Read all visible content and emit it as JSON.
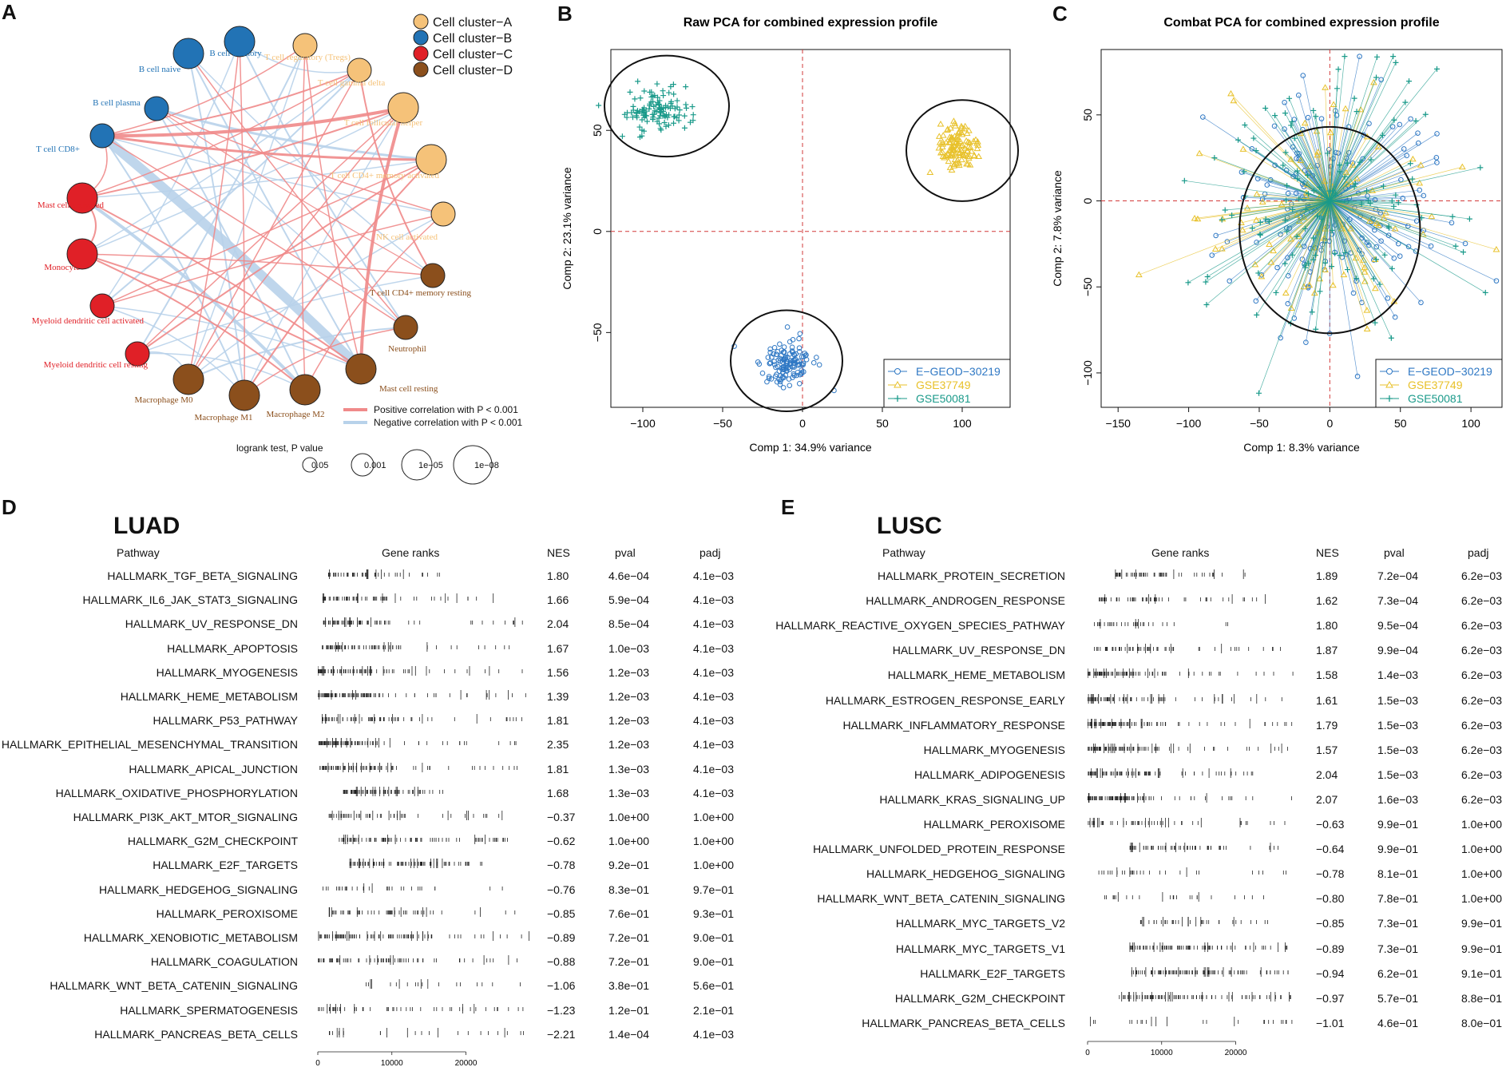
{
  "panels": {
    "a": "A",
    "b": "B",
    "c": "C",
    "d": "D",
    "e": "E"
  },
  "network": {
    "legend": [
      {
        "label": "Cell cluster−A",
        "color": "#f5c279"
      },
      {
        "label": "Cell cluster−B",
        "color": "#2273b5"
      },
      {
        "label": "Cell cluster−C",
        "color": "#e02027"
      },
      {
        "label": "Cell cluster−D",
        "color": "#8b4f1c"
      }
    ],
    "nodes": [
      {
        "label": "B cell naive",
        "cluster": 1,
        "size": 1
      },
      {
        "label": "B cell memory",
        "cluster": 1,
        "size": 1
      },
      {
        "label": "T cell regulatory (Tregs)",
        "cluster": 0,
        "size": 0
      },
      {
        "label": "T cell gamma delta",
        "cluster": 0,
        "size": 0
      },
      {
        "label": "T cell follicular helper",
        "cluster": 0,
        "size": 1
      },
      {
        "label": "T cell CD4+ memory activated",
        "cluster": 0,
        "size": 1
      },
      {
        "label": "NK cell activated",
        "cluster": 0,
        "size": 0
      },
      {
        "label": "T cell CD4+ memory resting",
        "cluster": 3,
        "size": 0
      },
      {
        "label": "Neutrophil",
        "cluster": 3,
        "size": 0
      },
      {
        "label": "Mast cell resting",
        "cluster": 3,
        "size": 1
      },
      {
        "label": "Macrophage M2",
        "cluster": 3,
        "size": 1
      },
      {
        "label": "Macrophage M1",
        "cluster": 3,
        "size": 1
      },
      {
        "label": "Macrophage M0",
        "cluster": 3,
        "size": 1
      },
      {
        "label": "Myeloid dendritic cell resting",
        "cluster": 2,
        "size": 0
      },
      {
        "label": "Myeloid dendritic cell activated",
        "cluster": 2,
        "size": 0
      },
      {
        "label": "Monocyte",
        "cluster": 2,
        "size": 1
      },
      {
        "label": "Mast cell activated",
        "cluster": 2,
        "size": 1
      },
      {
        "label": "T cell CD8+",
        "cluster": 1,
        "size": 0
      },
      {
        "label": "B cell plasma",
        "cluster": 1,
        "size": 0
      }
    ],
    "edge_legend": [
      {
        "label": "Positive correlation with P < 0.001",
        "color": "#f08a8a"
      },
      {
        "label": "Negative correlation with P < 0.001",
        "color": "#b8d2ea"
      }
    ],
    "size_legend": {
      "title": "logrank test, P value",
      "labels": [
        "0.05",
        "0.001",
        "1e−05",
        "1e−08"
      ]
    }
  },
  "chart_data": [
    {
      "type": "scatter",
      "title": "Raw PCA for combined expression profile",
      "xlabel": "Comp 1: 34.9% variance",
      "ylabel": "Comp 2: 23.1% variance",
      "xlim": [
        -120,
        130
      ],
      "ylim": [
        -87,
        90
      ],
      "xticks": [
        -100,
        -50,
        0,
        50,
        100
      ],
      "yticks": [
        -50,
        0,
        50
      ],
      "series": [
        {
          "name": "E−GEOD−30219",
          "color": "#2f78c4",
          "marker": "circle",
          "center": [
            -10,
            -65
          ],
          "spread": [
            10,
            7
          ],
          "n": 130
        },
        {
          "name": "GSE37749",
          "color": "#e8c12a",
          "marker": "triangle",
          "center": [
            98,
            42
          ],
          "spread": [
            9,
            7
          ],
          "n": 110
        },
        {
          "name": "GSE50081",
          "color": "#1a9a8a",
          "marker": "plus",
          "center": [
            -90,
            60
          ],
          "spread": [
            13,
            7
          ],
          "n": 120
        }
      ],
      "ellipses": [
        {
          "cx": -10,
          "cy": -64,
          "rx": 35,
          "ry": 25
        },
        {
          "cx": 100,
          "cy": 40,
          "rx": 35,
          "ry": 25
        },
        {
          "cx": -85,
          "cy": 62,
          "rx": 39,
          "ry": 25
        }
      ]
    },
    {
      "type": "scatter",
      "title": "Combat PCA for combined expression profile",
      "xlabel": "Comp 1: 8.3% variance",
      "ylabel": "Comp 2: 7.8% variance",
      "xlim": [
        -162,
        122
      ],
      "ylim": [
        -120,
        88
      ],
      "xticks": [
        -150,
        -100,
        -50,
        0,
        50,
        100
      ],
      "yticks": [
        -100,
        -50,
        0,
        50
      ],
      "series": [
        {
          "name": "E−GEOD−30219",
          "color": "#2f78c4",
          "marker": "circle",
          "spread": [
            40,
            35
          ],
          "n": 170
        },
        {
          "name": "GSE37749",
          "color": "#e8c12a",
          "marker": "triangle",
          "spread": [
            38,
            36
          ],
          "n": 100
        },
        {
          "name": "GSE50081",
          "color": "#1a9a8a",
          "marker": "plus",
          "spread": [
            48,
            40
          ],
          "n": 130
        }
      ],
      "ellipses": [
        {
          "cx": 0,
          "cy": -17,
          "rx": 64,
          "ry": 60
        }
      ]
    }
  ],
  "gsea": [
    {
      "title": "LUAD",
      "headers": {
        "pathway": "Pathway",
        "ranks": "Gene ranks",
        "nes": "NES",
        "pval": "pval",
        "padj": "padj"
      },
      "axis_ticks": [
        "0",
        "10000",
        "20000"
      ],
      "rows": [
        {
          "pathway": "HALLMARK_TGF_BETA_SIGNALING",
          "nes": "1.80",
          "pval": "4.6e−04",
          "padj": "4.1e−03",
          "s": 0.05,
          "e": 0.58,
          "d": 0.45,
          "n": 50
        },
        {
          "pathway": "HALLMARK_IL6_JAK_STAT3_SIGNALING",
          "nes": "1.66",
          "pval": "5.9e−04",
          "padj": "4.1e−03",
          "s": 0.02,
          "e": 0.86,
          "d": 0.4,
          "n": 60
        },
        {
          "pathway": "HALLMARK_UV_RESPONSE_DN",
          "nes": "2.04",
          "pval": "8.5e−04",
          "padj": "4.1e−03",
          "s": 0.02,
          "e": 0.98,
          "d": 0.35,
          "n": 70
        },
        {
          "pathway": "HALLMARK_APOPTOSIS",
          "nes": "1.67",
          "pval": "1.0e−03",
          "padj": "4.1e−03",
          "s": 0.02,
          "e": 0.98,
          "d": 0.4,
          "n": 70
        },
        {
          "pathway": "HALLMARK_MYOGENESIS",
          "nes": "1.56",
          "pval": "1.2e−03",
          "padj": "4.1e−03",
          "s": 0.0,
          "e": 1.0,
          "d": 0.35,
          "n": 90
        },
        {
          "pathway": "HALLMARK_HEME_METABOLISM",
          "nes": "1.39",
          "pval": "1.2e−03",
          "padj": "4.1e−03",
          "s": 0.0,
          "e": 1.0,
          "d": 0.35,
          "n": 90
        },
        {
          "pathway": "HALLMARK_P53_PATHWAY",
          "nes": "1.81",
          "pval": "1.2e−03",
          "padj": "4.1e−03",
          "s": 0.02,
          "e": 0.98,
          "d": 0.4,
          "n": 75
        },
        {
          "pathway": "HALLMARK_EPITHELIAL_MESENCHYMAL_TRANSITION",
          "nes": "2.35",
          "pval": "1.2e−03",
          "padj": "4.1e−03",
          "s": 0.0,
          "e": 0.98,
          "d": 0.3,
          "n": 90
        },
        {
          "pathway": "HALLMARK_APICAL_JUNCTION",
          "nes": "1.81",
          "pval": "1.3e−03",
          "padj": "4.1e−03",
          "s": 0.01,
          "e": 0.98,
          "d": 0.35,
          "n": 80
        },
        {
          "pathway": "HALLMARK_OXIDATIVE_PHOSPHORYLATION",
          "nes": "1.68",
          "pval": "1.3e−03",
          "padj": "4.1e−03",
          "s": 0.12,
          "e": 0.65,
          "d": 0.5,
          "n": 80
        },
        {
          "pathway": "HALLMARK_PI3K_AKT_MTOR_SIGNALING",
          "nes": "−0.37",
          "pval": "1.0e+00",
          "padj": "1.0e+00",
          "s": 0.05,
          "e": 0.9,
          "d": 0.5,
          "n": 60
        },
        {
          "pathway": "HALLMARK_G2M_CHECKPOINT",
          "nes": "−0.62",
          "pval": "1.0e+00",
          "padj": "1.0e+00",
          "s": 0.1,
          "e": 0.9,
          "d": 0.65,
          "n": 90
        },
        {
          "pathway": "HALLMARK_E2F_TARGETS",
          "nes": "−0.78",
          "pval": "9.2e−01",
          "padj": "1.0e+00",
          "s": 0.15,
          "e": 0.8,
          "d": 0.6,
          "n": 90
        },
        {
          "pathway": "HALLMARK_HEDGEHOG_SIGNALING",
          "nes": "−0.76",
          "pval": "8.3e−01",
          "padj": "9.7e−01",
          "s": 0.02,
          "e": 0.98,
          "d": 0.5,
          "n": 30
        },
        {
          "pathway": "HALLMARK_PEROXISOME",
          "nes": "−0.85",
          "pval": "7.6e−01",
          "padj": "9.3e−01",
          "s": 0.05,
          "e": 0.98,
          "d": 0.5,
          "n": 55
        },
        {
          "pathway": "HALLMARK_XENOBIOTIC_METABOLISM",
          "nes": "−0.89",
          "pval": "7.2e−01",
          "padj": "9.0e−01",
          "s": 0.0,
          "e": 1.0,
          "d": 0.5,
          "n": 90
        },
        {
          "pathway": "HALLMARK_COAGULATION",
          "nes": "−0.88",
          "pval": "7.2e−01",
          "padj": "9.0e−01",
          "s": 0.0,
          "e": 1.0,
          "d": 0.5,
          "n": 70
        },
        {
          "pathway": "HALLMARK_WNT_BETA_CATENIN_SIGNALING",
          "nes": "−1.06",
          "pval": "3.8e−01",
          "padj": "5.6e−01",
          "s": 0.18,
          "e": 0.98,
          "d": 0.6,
          "n": 20
        },
        {
          "pathway": "HALLMARK_SPERMATOGENESIS",
          "nes": "−1.23",
          "pval": "1.2e−01",
          "padj": "2.1e−01",
          "s": 0.0,
          "e": 0.98,
          "d": 0.6,
          "n": 55
        },
        {
          "pathway": "HALLMARK_PANCREAS_BETA_CELLS",
          "nes": "−2.21",
          "pval": "1.4e−04",
          "padj": "4.1e−03",
          "s": 0.05,
          "e": 1.0,
          "d": 0.85,
          "n": 25
        }
      ]
    },
    {
      "title": "LUSC",
      "headers": {
        "pathway": "Pathway",
        "ranks": "Gene ranks",
        "nes": "NES",
        "pval": "pval",
        "padj": "padj"
      },
      "axis_ticks": [
        "0",
        "10000",
        "20000"
      ],
      "rows": [
        {
          "pathway": "HALLMARK_PROTEIN_SECRETION",
          "nes": "1.89",
          "pval": "7.2e−04",
          "padj": "6.2e−03",
          "s": 0.13,
          "e": 0.75,
          "d": 0.4,
          "n": 55
        },
        {
          "pathway": "HALLMARK_ANDROGEN_RESPONSE",
          "nes": "1.62",
          "pval": "7.3e−04",
          "padj": "6.2e−03",
          "s": 0.05,
          "e": 0.85,
          "d": 0.4,
          "n": 55
        },
        {
          "pathway": "HALLMARK_REACTIVE_OXYGEN_SPECIES_PATHWAY",
          "nes": "1.80",
          "pval": "9.5e−04",
          "padj": "6.2e−03",
          "s": 0.03,
          "e": 0.67,
          "d": 0.4,
          "n": 35
        },
        {
          "pathway": "HALLMARK_UV_RESPONSE_DN",
          "nes": "1.87",
          "pval": "9.9e−04",
          "padj": "6.2e−03",
          "s": 0.03,
          "e": 0.98,
          "d": 0.4,
          "n": 65
        },
        {
          "pathway": "HALLMARK_HEME_METABOLISM",
          "nes": "1.58",
          "pval": "1.4e−03",
          "padj": "6.2e−03",
          "s": 0.0,
          "e": 1.0,
          "d": 0.4,
          "n": 90
        },
        {
          "pathway": "HALLMARK_ESTROGEN_RESPONSE_EARLY",
          "nes": "1.61",
          "pval": "1.5e−03",
          "padj": "6.2e−03",
          "s": 0.0,
          "e": 0.98,
          "d": 0.4,
          "n": 80
        },
        {
          "pathway": "HALLMARK_INFLAMMATORY_RESPONSE",
          "nes": "1.79",
          "pval": "1.5e−03",
          "padj": "6.2e−03",
          "s": 0.0,
          "e": 1.0,
          "d": 0.35,
          "n": 95
        },
        {
          "pathway": "HALLMARK_MYOGENESIS",
          "nes": "1.57",
          "pval": "1.5e−03",
          "padj": "6.2e−03",
          "s": 0.0,
          "e": 1.0,
          "d": 0.35,
          "n": 90
        },
        {
          "pathway": "HALLMARK_ADIPOGENESIS",
          "nes": "2.04",
          "pval": "1.5e−03",
          "padj": "6.2e−03",
          "s": 0.0,
          "e": 0.85,
          "d": 0.4,
          "n": 80
        },
        {
          "pathway": "HALLMARK_KRAS_SIGNALING_UP",
          "nes": "2.07",
          "pval": "1.6e−03",
          "padj": "6.2e−03",
          "s": 0.0,
          "e": 1.0,
          "d": 0.3,
          "n": 100
        },
        {
          "pathway": "HALLMARK_PEROXISOME",
          "nes": "−0.63",
          "pval": "9.9e−01",
          "padj": "1.0e+00",
          "s": 0.0,
          "e": 1.0,
          "d": 0.5,
          "n": 55
        },
        {
          "pathway": "HALLMARK_UNFOLDED_PROTEIN_RESPONSE",
          "nes": "−0.64",
          "pval": "9.9e−01",
          "padj": "1.0e+00",
          "s": 0.2,
          "e": 0.9,
          "d": 0.55,
          "n": 65
        },
        {
          "pathway": "HALLMARK_HEDGEHOG_SIGNALING",
          "nes": "−0.78",
          "pval": "8.1e−01",
          "padj": "1.0e+00",
          "s": 0.05,
          "e": 1.0,
          "d": 0.5,
          "n": 30
        },
        {
          "pathway": "HALLMARK_WNT_BETA_CATENIN_SIGNALING",
          "nes": "−0.80",
          "pval": "7.8e−01",
          "padj": "1.0e+00",
          "s": 0.08,
          "e": 1.0,
          "d": 0.5,
          "n": 25
        },
        {
          "pathway": "HALLMARK_MYC_TARGETS_V2",
          "nes": "−0.85",
          "pval": "7.3e−01",
          "padj": "9.9e−01",
          "s": 0.25,
          "e": 0.9,
          "d": 0.6,
          "n": 40
        },
        {
          "pathway": "HALLMARK_MYC_TARGETS_V1",
          "nes": "−0.89",
          "pval": "7.3e−01",
          "padj": "9.9e−01",
          "s": 0.2,
          "e": 0.95,
          "d": 0.65,
          "n": 90
        },
        {
          "pathway": "HALLMARK_E2F_TARGETS",
          "nes": "−0.94",
          "pval": "6.2e−01",
          "padj": "9.1e−01",
          "s": 0.2,
          "e": 0.95,
          "d": 0.65,
          "n": 95
        },
        {
          "pathway": "HALLMARK_G2M_CHECKPOINT",
          "nes": "−0.97",
          "pval": "5.7e−01",
          "padj": "8.8e−01",
          "s": 0.15,
          "e": 0.98,
          "d": 0.65,
          "n": 95
        },
        {
          "pathway": "HALLMARK_PANCREAS_BETA_CELLS",
          "nes": "−1.01",
          "pval": "4.6e−01",
          "padj": "8.0e−01",
          "s": 0.0,
          "e": 1.0,
          "d": 0.85,
          "n": 25
        }
      ]
    }
  ]
}
